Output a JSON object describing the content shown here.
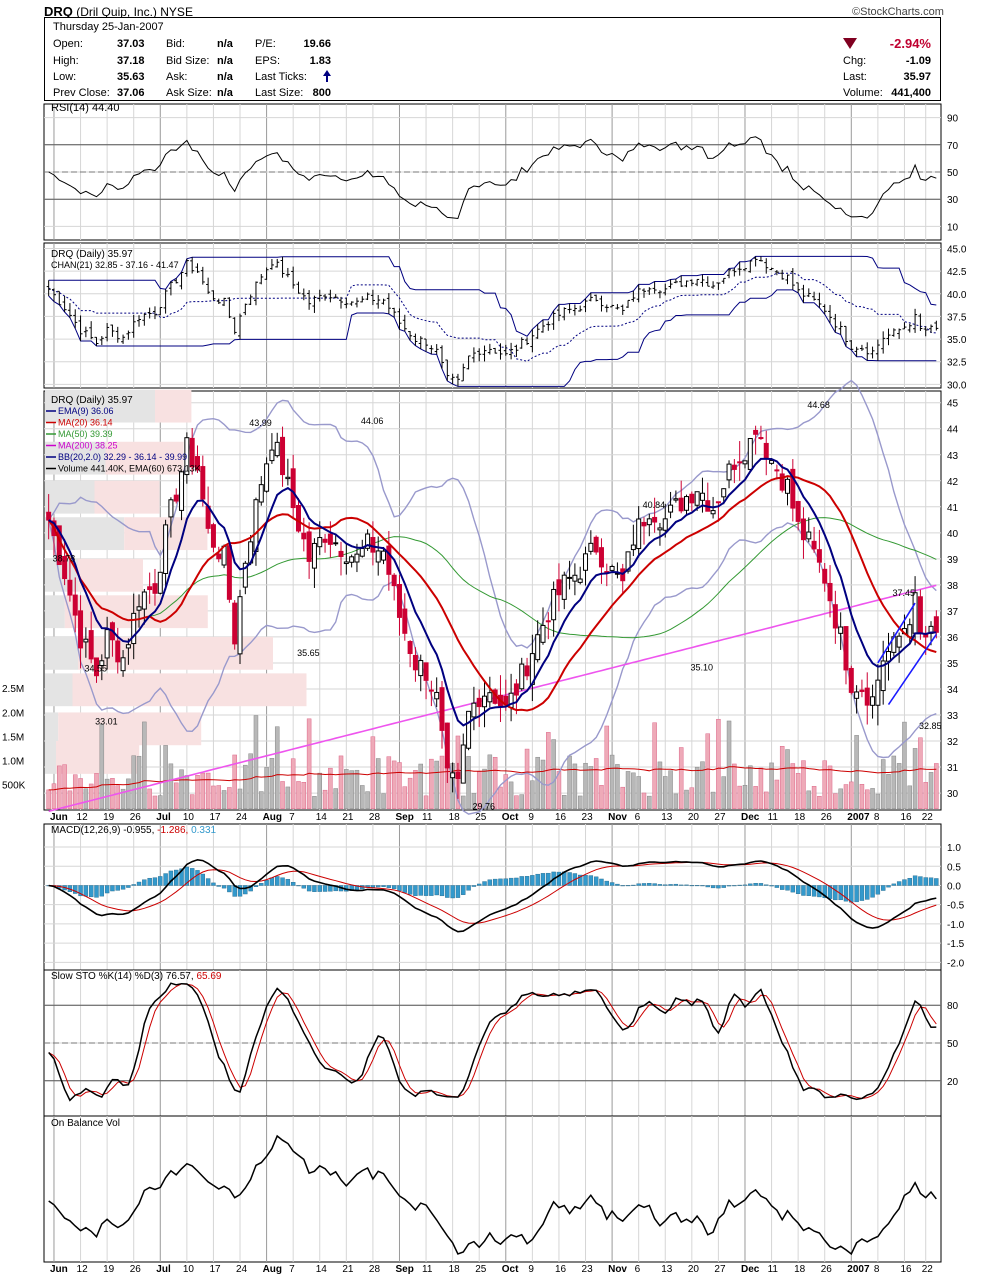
{
  "header": {
    "symbol": "DRQ",
    "company": "(Dril Quip, Inc.)",
    "exchange": "NYSE",
    "credit": "©StockCharts.com",
    "date": "Thursday  25-Jan-2007",
    "labels": {
      "open": "Open:",
      "high": "High:",
      "low": "Low:",
      "prev_close": "Prev Close:",
      "bid": "Bid:",
      "bid_size": "Bid Size:",
      "ask": "Ask:",
      "ask_size": "Ask Size:",
      "pe": "P/E:",
      "eps": "EPS:",
      "last_ticks": "Last Ticks:",
      "last_size": "Last Size:",
      "chg": "Chg:",
      "last": "Last:",
      "volume": "Volume:"
    },
    "values": {
      "open": "37.03",
      "high": "37.18",
      "low": "35.63",
      "prev_close": "37.06",
      "bid": "n/a",
      "bid_size": "n/a",
      "ask": "n/a",
      "ask_size": "n/a",
      "pe": "19.66",
      "eps": "1.83",
      "last_size": "800",
      "pct_change": "-2.94%",
      "chg": "-1.09",
      "last": "35.97",
      "volume": "441,400"
    }
  },
  "x_axis": {
    "labels": [
      "Jun",
      "12",
      "19",
      "26",
      "Jul",
      "10",
      "17",
      "24",
      "Aug",
      "7",
      "14",
      "21",
      "28",
      "Sep",
      "11",
      "18",
      "25",
      "Oct",
      "9",
      "16",
      "23",
      "Nov",
      "6",
      "13",
      "20",
      "27",
      "Dec",
      "11",
      "18",
      "26",
      "2007",
      "8",
      "16",
      "22"
    ],
    "bold": [
      "Jun",
      "Jul",
      "Aug",
      "Sep",
      "Oct",
      "Nov",
      "Dec",
      "2007"
    ]
  },
  "panels": {
    "rsi": {
      "title": "RSI(14) 44.40",
      "ticks": [
        "90",
        "70",
        "50",
        "30",
        "10"
      ]
    },
    "chan": {
      "title": "DRQ (Daily) 35.97",
      "legend": "CHAN(21) 32.85 - 37.16 - 41.47",
      "ticks": [
        "45.0",
        "42.5",
        "40.0",
        "37.5",
        "35.0",
        "32.5",
        "30.0"
      ]
    },
    "price": {
      "title": "DRQ (Daily) 35.97",
      "legend": [
        {
          "text": "EMA(9) 36.06",
          "color": "#000080"
        },
        {
          "text": "MA(20) 36.14",
          "color": "#cc0000"
        },
        {
          "text": "MA(50) 39.39",
          "color": "#339933"
        },
        {
          "text": "MA(200) 38.25",
          "color": "#cc00cc"
        },
        {
          "text": "BB(20,2.0) 32.29 - 36.14 - 39.99",
          "color": "#000080"
        },
        {
          "text": "Volume 441.40K, EMA(60) 673.13K",
          "color": "#000000"
        }
      ],
      "ticks": [
        "45",
        "44",
        "43",
        "42",
        "41",
        "40",
        "39",
        "38",
        "37",
        "36",
        "35",
        "34",
        "33",
        "32",
        "31",
        "30"
      ],
      "vol_ticks": [
        "2.5M",
        "2.0M",
        "1.5M",
        "1.0M",
        "500K"
      ],
      "annotations": [
        "43.99",
        "44.06",
        "38.78",
        "34.55",
        "33.01",
        "35.65",
        "29.76",
        "40.84",
        "35.10",
        "44.68",
        "37.45",
        "32.85"
      ]
    },
    "macd": {
      "title_main": "MACD(12,26,9) -0.955, ",
      "title_sig": "-1.286, ",
      "title_hist": "0.331",
      "ticks": [
        "1.0",
        "0.5",
        "0.0",
        "-0.5",
        "-1.0",
        "-1.5",
        "-2.0"
      ]
    },
    "sto": {
      "title_main": "Slow STO %K(14) %D(3) 76.57, ",
      "title_d": "65.69",
      "ticks": [
        "80",
        "50",
        "20"
      ]
    },
    "obv": {
      "title": "On Balance Vol"
    }
  },
  "colors": {
    "up_candle": "#000000",
    "down_candle": "#cc0033",
    "ema9": "#000080",
    "ma20": "#cc0000",
    "ma50": "#339933",
    "ma200": "#ee55ee",
    "bb": "#9999cc",
    "macd_hist": "#3399cc",
    "accent_red": "#c00030"
  },
  "chart_data": [
    {
      "type": "candlestick",
      "title": "DRQ (Daily) price",
      "ylim": [
        29.5,
        45.5
      ],
      "anchors_close": [
        [
          0,
          40.5
        ],
        [
          3,
          38.5
        ],
        [
          6,
          36.0
        ],
        [
          9,
          34.6
        ],
        [
          11,
          36.0
        ],
        [
          14,
          35.2
        ],
        [
          17,
          37.5
        ],
        [
          20,
          38.0
        ],
        [
          23,
          40.8
        ],
        [
          26,
          43.2
        ],
        [
          28,
          42.5
        ],
        [
          30,
          40.0
        ],
        [
          33,
          39.0
        ],
        [
          35,
          36.0
        ],
        [
          37,
          39.0
        ],
        [
          40,
          42.0
        ],
        [
          42,
          43.6
        ],
        [
          44,
          42.5
        ],
        [
          46,
          41.0
        ],
        [
          49,
          39.0
        ],
        [
          52,
          40.0
        ],
        [
          55,
          39.5
        ],
        [
          58,
          39.0
        ],
        [
          60,
          39.5
        ],
        [
          63,
          39.3
        ],
        [
          66,
          36.8
        ],
        [
          69,
          35.0
        ],
        [
          71,
          34.7
        ],
        [
          73,
          33.6
        ],
        [
          75,
          30.5
        ],
        [
          77,
          30.2
        ],
        [
          79,
          33.0
        ],
        [
          81,
          33.8
        ],
        [
          83,
          34.0
        ],
        [
          86,
          33.2
        ],
        [
          88,
          34.0
        ],
        [
          91,
          35.5
        ],
        [
          94,
          37.0
        ],
        [
          97,
          38.0
        ],
        [
          100,
          38.6
        ],
        [
          103,
          39.5
        ],
        [
          106,
          38.5
        ],
        [
          108,
          38.0
        ],
        [
          110,
          39.8
        ],
        [
          113,
          41.0
        ],
        [
          116,
          40.5
        ],
        [
          119,
          41.2
        ],
        [
          122,
          41.8
        ],
        [
          125,
          41.0
        ],
        [
          127,
          41.9
        ],
        [
          129,
          42.8
        ],
        [
          132,
          43.5
        ],
        [
          133,
          44.2
        ],
        [
          136,
          42.8
        ],
        [
          139,
          41.8
        ],
        [
          141,
          40.2
        ],
        [
          143,
          39.6
        ],
        [
          146,
          38.3
        ],
        [
          149,
          36.0
        ],
        [
          151,
          34.3
        ],
        [
          153,
          34.1
        ],
        [
          155,
          33.6
        ],
        [
          157,
          35.2
        ],
        [
          159,
          35.6
        ],
        [
          161,
          36.4
        ],
        [
          163,
          37.3
        ],
        [
          164,
          36.0
        ]
      ],
      "labels": [
        {
          "text": "38.78",
          "i": 3
        },
        {
          "text": "34.55",
          "i": 9
        },
        {
          "text": "33.01",
          "i": 11
        },
        {
          "text": "43.99",
          "i": 40
        },
        {
          "text": "35.65",
          "i": 49
        },
        {
          "text": "44.06",
          "i": 61
        },
        {
          "text": "29.76",
          "i": 82
        },
        {
          "text": "40.84",
          "i": 114
        },
        {
          "text": "35.10",
          "i": 123
        },
        {
          "text": "44.68",
          "i": 145
        },
        {
          "text": "37.45",
          "i": 161
        },
        {
          "text": "32.85",
          "i": 166
        }
      ]
    },
    {
      "type": "line",
      "title": "RSI(14)",
      "ylim": [
        0,
        100
      ],
      "last": 44.4
    },
    {
      "type": "line",
      "title": "CHAN(21)",
      "values_last": {
        "lower": 32.85,
        "mid": 37.16,
        "upper": 41.47
      }
    },
    {
      "type": "bar",
      "title": "MACD(12,26,9)",
      "last": {
        "macd": -0.955,
        "signal": -1.286,
        "hist": 0.331
      }
    },
    {
      "type": "line",
      "title": "Slow STO %K(14) %D(3)",
      "last": {
        "k": 76.57,
        "d": 65.69
      }
    },
    {
      "type": "line",
      "title": "On Balance Vol"
    }
  ]
}
